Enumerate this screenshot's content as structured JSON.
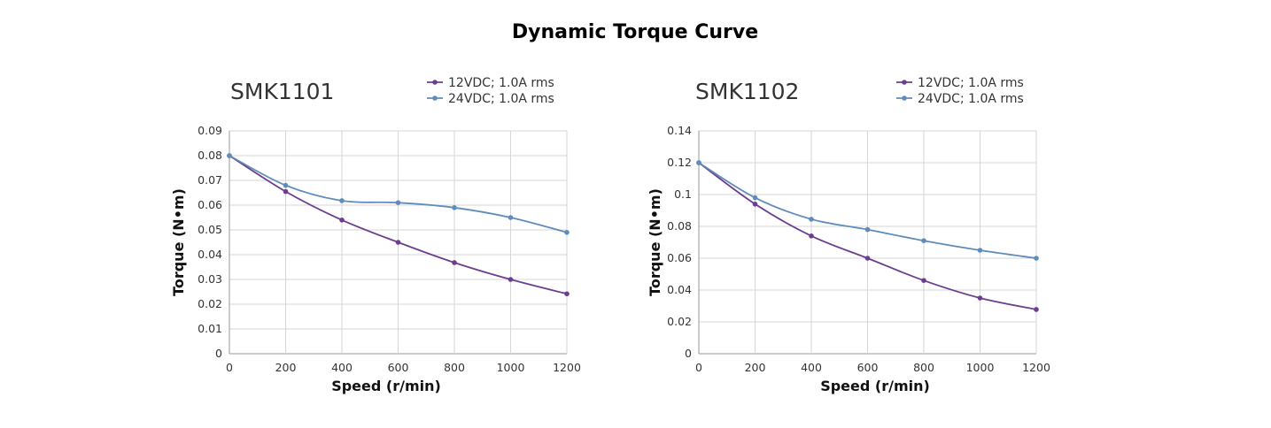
{
  "title": "Dynamic Torque Curve",
  "colors": {
    "series_12v": "#6b3f8e",
    "series_24v": "#5f8dbb",
    "grid": "#d6d6d6"
  },
  "chart_data": [
    {
      "type": "line",
      "title": "SMK1101",
      "xlabel": "Speed (r/min)",
      "ylabel": "Torque (N•m)",
      "x": [
        0,
        200,
        400,
        600,
        800,
        1000,
        1200
      ],
      "xticks": [
        "0",
        "200",
        "400",
        "600",
        "800",
        "1000",
        "1200"
      ],
      "yticks": [
        "0",
        "0.01",
        "0.02",
        "0.03",
        "0.04",
        "0.05",
        "0.06",
        "0.07",
        "0.08",
        "0.09"
      ],
      "xlim": [
        0,
        1200
      ],
      "ylim": [
        0,
        0.09
      ],
      "grid": true,
      "legend": "top-right",
      "series": [
        {
          "name": "12VDC; 1.0A rms",
          "values": [
            0.08,
            0.0655,
            0.054,
            0.045,
            0.0368,
            0.03,
            0.0242
          ]
        },
        {
          "name": "24VDC; 1.0A rms",
          "values": [
            0.08,
            0.068,
            0.0618,
            0.061,
            0.059,
            0.055,
            0.049
          ]
        }
      ]
    },
    {
      "type": "line",
      "title": "SMK1102",
      "xlabel": "Speed (r/min)",
      "ylabel": "Torque (N•m)",
      "x": [
        0,
        200,
        400,
        600,
        800,
        1000,
        1200
      ],
      "xticks": [
        "0",
        "200",
        "400",
        "600",
        "800",
        "1000",
        "1200"
      ],
      "yticks": [
        "0",
        "0.02",
        "0.04",
        "0.06",
        "0.08",
        "0.1",
        "0.12",
        "0.14"
      ],
      "xlim": [
        0,
        1200
      ],
      "ylim": [
        0,
        0.14
      ],
      "grid": true,
      "legend": "top-right",
      "series": [
        {
          "name": "12VDC; 1.0A rms",
          "values": [
            0.12,
            0.094,
            0.074,
            0.06,
            0.046,
            0.035,
            0.0278
          ]
        },
        {
          "name": "24VDC; 1.0A rms",
          "values": [
            0.12,
            0.098,
            0.0845,
            0.078,
            0.071,
            0.065,
            0.06
          ]
        }
      ]
    }
  ]
}
